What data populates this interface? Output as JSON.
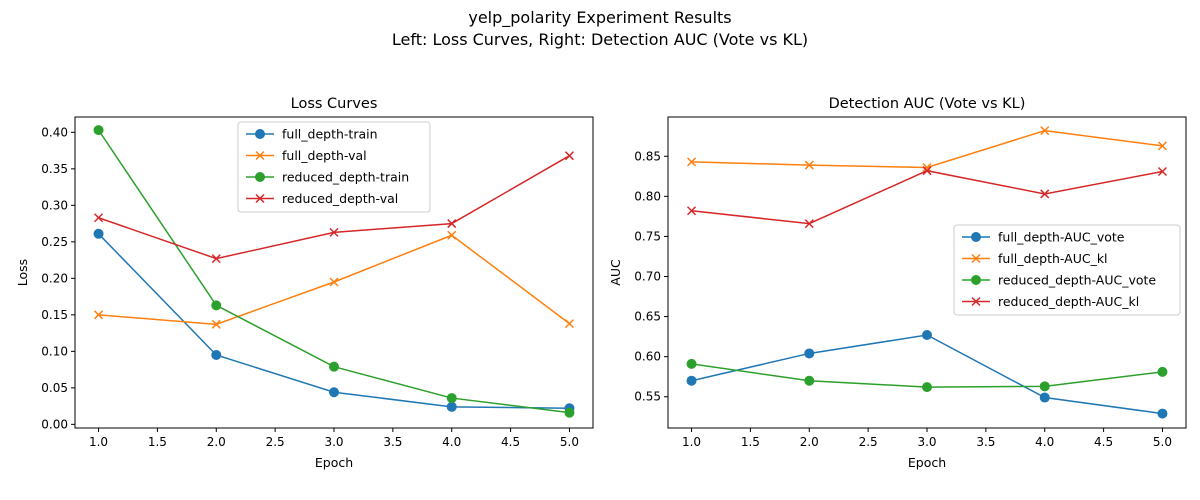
{
  "figure": {
    "title_line1": "yelp_polarity Experiment Results",
    "title_line2": "Left: Loss Curves, Right: Detection AUC (Vote vs KL)"
  },
  "colors": {
    "blue": "#1f77b4",
    "orange": "#ff7f0e",
    "green": "#2ca02c",
    "red": "#d62728"
  },
  "chart_data": [
    {
      "type": "line",
      "title": "Loss Curves",
      "xlabel": "Epoch",
      "ylabel": "Loss",
      "x": [
        1,
        2,
        3,
        4,
        5
      ],
      "xlim": [
        0.8,
        5.2
      ],
      "ylim": [
        -0.005,
        0.421
      ],
      "xticks": [
        1.0,
        1.5,
        2.0,
        2.5,
        3.0,
        3.5,
        4.0,
        4.5,
        5.0
      ],
      "xtick_labels": [
        "1.0",
        "1.5",
        "2.0",
        "2.5",
        "3.0",
        "3.5",
        "4.0",
        "4.5",
        "5.0"
      ],
      "yticks": [
        0.0,
        0.05,
        0.1,
        0.15,
        0.2,
        0.25,
        0.3,
        0.35,
        0.4
      ],
      "ytick_labels": [
        "0.00",
        "0.05",
        "0.10",
        "0.15",
        "0.20",
        "0.25",
        "0.30",
        "0.35",
        "0.40"
      ],
      "legend_position": "upper center",
      "grid": false,
      "series": [
        {
          "name": "full_depth-train",
          "color": "#1f77b4",
          "marker": "circle",
          "values": [
            0.261,
            0.095,
            0.044,
            0.024,
            0.022
          ]
        },
        {
          "name": "full_depth-val",
          "color": "#ff7f0e",
          "marker": "x",
          "values": [
            0.15,
            0.137,
            0.195,
            0.259,
            0.138
          ]
        },
        {
          "name": "reduced_depth-train",
          "color": "#2ca02c",
          "marker": "circle",
          "values": [
            0.403,
            0.163,
            0.079,
            0.036,
            0.016
          ]
        },
        {
          "name": "reduced_depth-val",
          "color": "#d62728",
          "marker": "x",
          "values": [
            0.283,
            0.227,
            0.263,
            0.275,
            0.368
          ]
        }
      ]
    },
    {
      "type": "line",
      "title": "Detection AUC (Vote vs KL)",
      "xlabel": "Epoch",
      "ylabel": "AUC",
      "x": [
        1,
        2,
        3,
        4,
        5
      ],
      "xlim": [
        0.8,
        5.2
      ],
      "ylim": [
        0.511,
        0.899
      ],
      "xticks": [
        1.0,
        1.5,
        2.0,
        2.5,
        3.0,
        3.5,
        4.0,
        4.5,
        5.0
      ],
      "xtick_labels": [
        "1.0",
        "1.5",
        "2.0",
        "2.5",
        "3.0",
        "3.5",
        "4.0",
        "4.5",
        "5.0"
      ],
      "yticks": [
        0.55,
        0.6,
        0.65,
        0.7,
        0.75,
        0.8,
        0.85
      ],
      "ytick_labels": [
        "0.55",
        "0.60",
        "0.65",
        "0.70",
        "0.75",
        "0.80",
        "0.85"
      ],
      "legend_position": "center right",
      "grid": false,
      "series": [
        {
          "name": "full_depth-AUC_vote",
          "color": "#1f77b4",
          "marker": "circle",
          "values": [
            0.57,
            0.604,
            0.627,
            0.549,
            0.529
          ]
        },
        {
          "name": "full_depth-AUC_kl",
          "color": "#ff7f0e",
          "marker": "x",
          "values": [
            0.843,
            0.839,
            0.836,
            0.882,
            0.863
          ]
        },
        {
          "name": "reduced_depth-AUC_vote",
          "color": "#2ca02c",
          "marker": "circle",
          "values": [
            0.591,
            0.57,
            0.562,
            0.563,
            0.581
          ]
        },
        {
          "name": "reduced_depth-AUC_kl",
          "color": "#d62728",
          "marker": "x",
          "values": [
            0.782,
            0.766,
            0.832,
            0.803,
            0.831
          ]
        }
      ]
    }
  ]
}
